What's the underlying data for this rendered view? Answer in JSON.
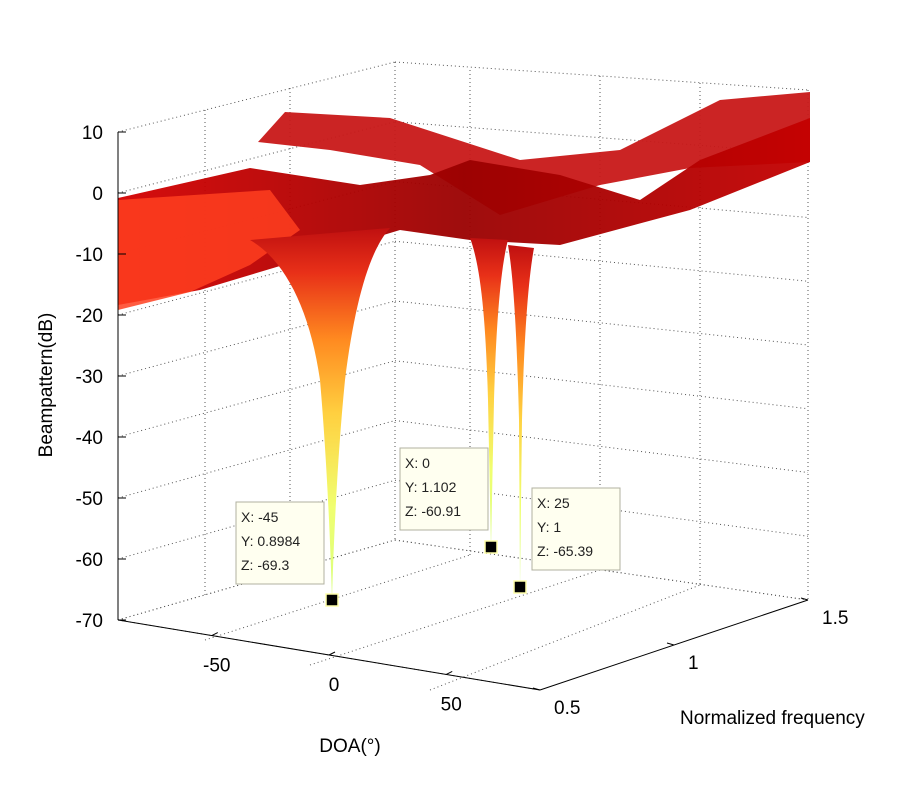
{
  "chart_data": {
    "type": "surface",
    "title": "",
    "xlabel": "DOA(°)",
    "ylabel": "Normalized frequency",
    "zlabel": "Beampattern(dB)",
    "x_ticks": [
      "-50",
      "0",
      "50"
    ],
    "y_ticks": [
      "0.5",
      "1",
      "1.5"
    ],
    "z_ticks": [
      "10",
      "0",
      "-10",
      "-20",
      "-30",
      "-40",
      "-50",
      "-60",
      "-70"
    ],
    "xlim": [
      -90,
      90
    ],
    "ylim": [
      0.5,
      1.5
    ],
    "zlim": [
      -70,
      10
    ],
    "grid": true,
    "colormap": [
      "#ffff66",
      "#ffd040",
      "#ff8a20",
      "#e02010",
      "#b00000",
      "#8a0000"
    ],
    "nulls": [
      {
        "x": -45,
        "y": "0.8984",
        "z": "-69.3",
        "x_text": "-45"
      },
      {
        "x": 0,
        "y": "1.102",
        "z": "-60.91",
        "x_text": "0"
      },
      {
        "x": 25,
        "y": "1",
        "z": "-65.39",
        "x_text": "25"
      }
    ],
    "datatip_labels": {
      "x": "X: ",
      "y": "Y: ",
      "z": "Z: "
    }
  }
}
